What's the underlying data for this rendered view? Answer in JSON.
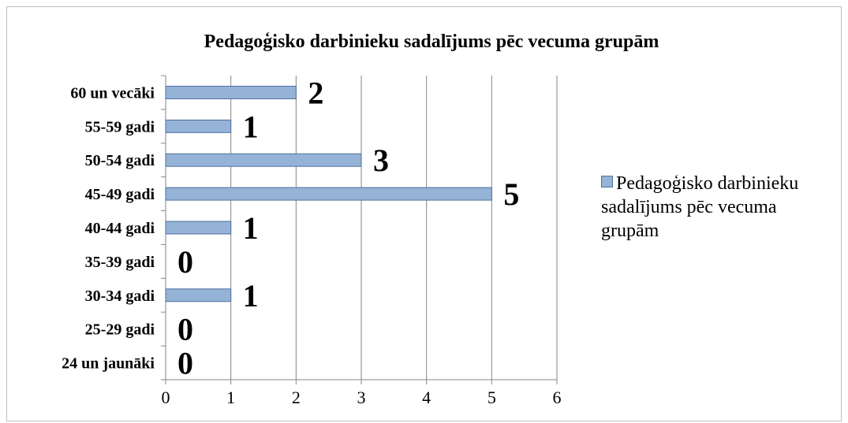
{
  "chart_data": {
    "type": "bar",
    "orientation": "horizontal",
    "title": "Pedagoģisko darbinieku sadalījums pēc vecuma grupām",
    "categories": [
      "24 un jaunāki",
      "25-29 gadi",
      "30-34 gadi",
      "35-39 gadi",
      "40-44 gadi",
      "45-49 gadi",
      "50-54 gadi",
      "55-59 gadi",
      "60 un vecāki"
    ],
    "series": [
      {
        "name": "Pedagoģisko darbinieku sadalījums pēc vecuma grupām",
        "color": "#95b3d7",
        "values": [
          0,
          0,
          1,
          0,
          1,
          5,
          3,
          1,
          2
        ]
      }
    ],
    "xlim": [
      0,
      6
    ],
    "xticks": [
      0,
      1,
      2,
      3,
      4,
      5,
      6
    ],
    "grid": true,
    "legend": "right"
  }
}
